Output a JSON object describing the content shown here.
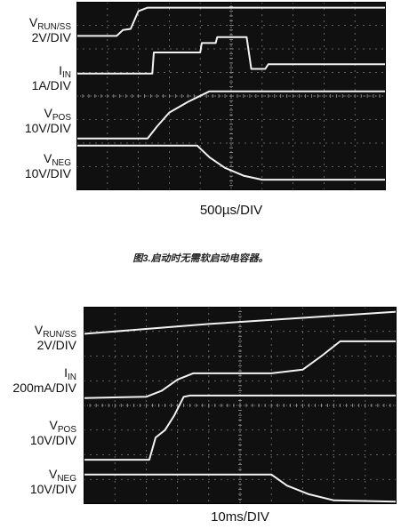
{
  "chart_data": [
    {
      "type": "line",
      "xlabel": "500µs/DIV",
      "divisions": {
        "x": 10,
        "y": 8
      },
      "grid": true,
      "traces": [
        {
          "name": "V_RUN/SS",
          "main": "V",
          "sub": "RUN/SS",
          "scale": "2V/DIV",
          "points": [
            [
              0,
              6.55
            ],
            [
              1.3,
              6.55
            ],
            [
              1.5,
              6.8
            ],
            [
              1.75,
              6.85
            ],
            [
              2.0,
              7.6
            ],
            [
              2.3,
              7.75
            ],
            [
              10,
              7.75
            ]
          ]
        },
        {
          "name": "I_IN",
          "main": "I",
          "sub": "IN",
          "scale": "1A/DIV",
          "points": [
            [
              0,
              4.95
            ],
            [
              2.3,
              4.95
            ],
            [
              2.45,
              4.95
            ],
            [
              2.5,
              5.85
            ],
            [
              4.0,
              5.85
            ],
            [
              4.05,
              6.25
            ],
            [
              4.5,
              6.25
            ],
            [
              4.55,
              6.5
            ],
            [
              5.5,
              6.5
            ],
            [
              5.65,
              5.15
            ],
            [
              6.1,
              5.15
            ],
            [
              6.2,
              5.35
            ],
            [
              10,
              5.35
            ]
          ]
        },
        {
          "name": "V_POS",
          "main": "V",
          "sub": "POS",
          "scale": "10V/DIV",
          "points": [
            [
              0,
              2.2
            ],
            [
              2.3,
              2.2
            ],
            [
              2.6,
              2.7
            ],
            [
              3.0,
              3.3
            ],
            [
              3.6,
              3.75
            ],
            [
              4.3,
              4.2
            ],
            [
              10,
              4.2
            ]
          ]
        },
        {
          "name": "V_NEG",
          "main": "V",
          "sub": "NEG",
          "scale": "10V/DIV",
          "points": [
            [
              0,
              1.9
            ],
            [
              3.9,
              1.9
            ],
            [
              4.3,
              1.4
            ],
            [
              4.8,
              0.95
            ],
            [
              5.4,
              0.62
            ],
            [
              6.0,
              0.45
            ],
            [
              10,
              0.45
            ]
          ]
        }
      ]
    },
    {
      "type": "line",
      "xlabel": "10ms/DIV",
      "divisions": {
        "x": 10,
        "y": 8
      },
      "grid": true,
      "traces": [
        {
          "name": "V_RUN/SS",
          "main": "V",
          "sub": "RUN/SS",
          "scale": "2V/DIV",
          "points": [
            [
              0,
              6.9
            ],
            [
              1.5,
              7.05
            ],
            [
              4,
              7.3
            ],
            [
              7,
              7.55
            ],
            [
              10,
              7.8
            ]
          ]
        },
        {
          "name": "I_IN",
          "main": "I",
          "sub": "IN",
          "scale": "200mA/DIV",
          "points": [
            [
              0,
              4.3
            ],
            [
              2.0,
              4.35
            ],
            [
              2.5,
              4.6
            ],
            [
              3.0,
              5.05
            ],
            [
              3.5,
              5.3
            ],
            [
              6.0,
              5.3
            ],
            [
              7.0,
              5.45
            ],
            [
              7.6,
              6.0
            ],
            [
              8.2,
              6.6
            ],
            [
              10,
              6.6
            ]
          ]
        },
        {
          "name": "V_POS",
          "main": "V",
          "sub": "POS",
          "scale": "10V/DIV",
          "points": [
            [
              0,
              1.8
            ],
            [
              2.1,
              1.8
            ],
            [
              2.3,
              2.7
            ],
            [
              2.6,
              3.0
            ],
            [
              2.9,
              3.6
            ],
            [
              3.2,
              4.35
            ],
            [
              3.4,
              4.4
            ],
            [
              10,
              4.4
            ]
          ]
        },
        {
          "name": "V_NEG",
          "main": "V",
          "sub": "NEG",
          "scale": "10V/DIV",
          "points": [
            [
              0,
              1.2
            ],
            [
              6.0,
              1.2
            ],
            [
              6.5,
              0.75
            ],
            [
              7.2,
              0.4
            ],
            [
              8.0,
              0.15
            ],
            [
              10,
              0.1
            ]
          ]
        }
      ]
    }
  ],
  "caption": "图3.启动时无需软启动电容器。"
}
